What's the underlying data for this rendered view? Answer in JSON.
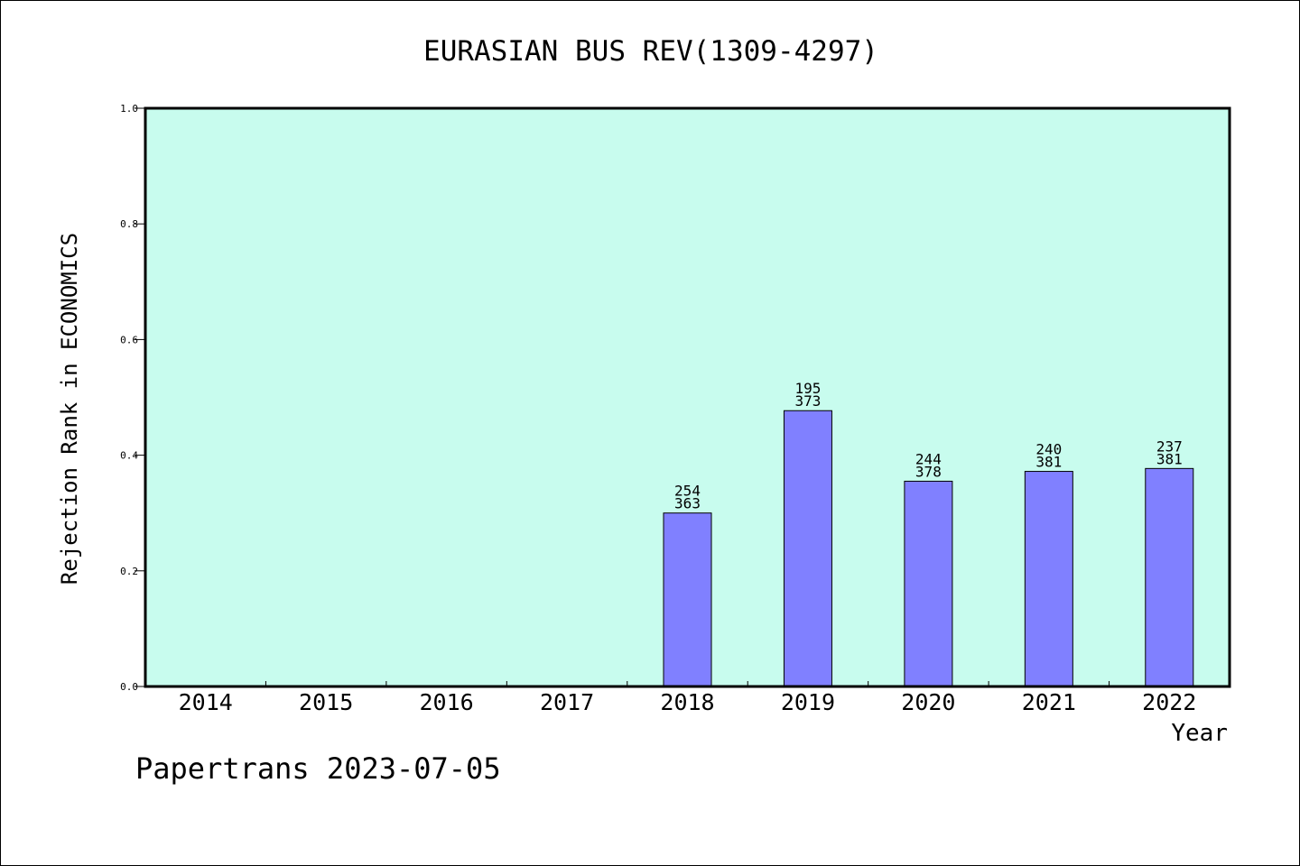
{
  "footer": "Papertrans 2023-07-05",
  "colors": {
    "plot_background": "#c8fcee",
    "bar_fill": "#8080ff",
    "axis": "#000000"
  },
  "chart_data": {
    "type": "bar",
    "title": "EURASIAN BUS REV(1309-4297)",
    "xlabel": "Year",
    "ylabel": "Rejection Rank in ECONOMICS",
    "ylim": [
      0,
      1.0
    ],
    "yticks": [
      "0.0",
      "0.2",
      "0.4",
      "0.6",
      "0.8",
      "1.0"
    ],
    "categories": [
      "2014",
      "2015",
      "2016",
      "2017",
      "2018",
      "2019",
      "2020",
      "2021",
      "2022"
    ],
    "values": [
      null,
      null,
      null,
      null,
      0.3,
      0.477,
      0.355,
      0.372,
      0.377
    ],
    "labels_top": [
      null,
      null,
      null,
      null,
      "254",
      "195",
      "244",
      "240",
      "237"
    ],
    "labels_bottom": [
      null,
      null,
      null,
      null,
      "363",
      "373",
      "378",
      "381",
      "381"
    ],
    "grid": false,
    "legend": "none"
  }
}
